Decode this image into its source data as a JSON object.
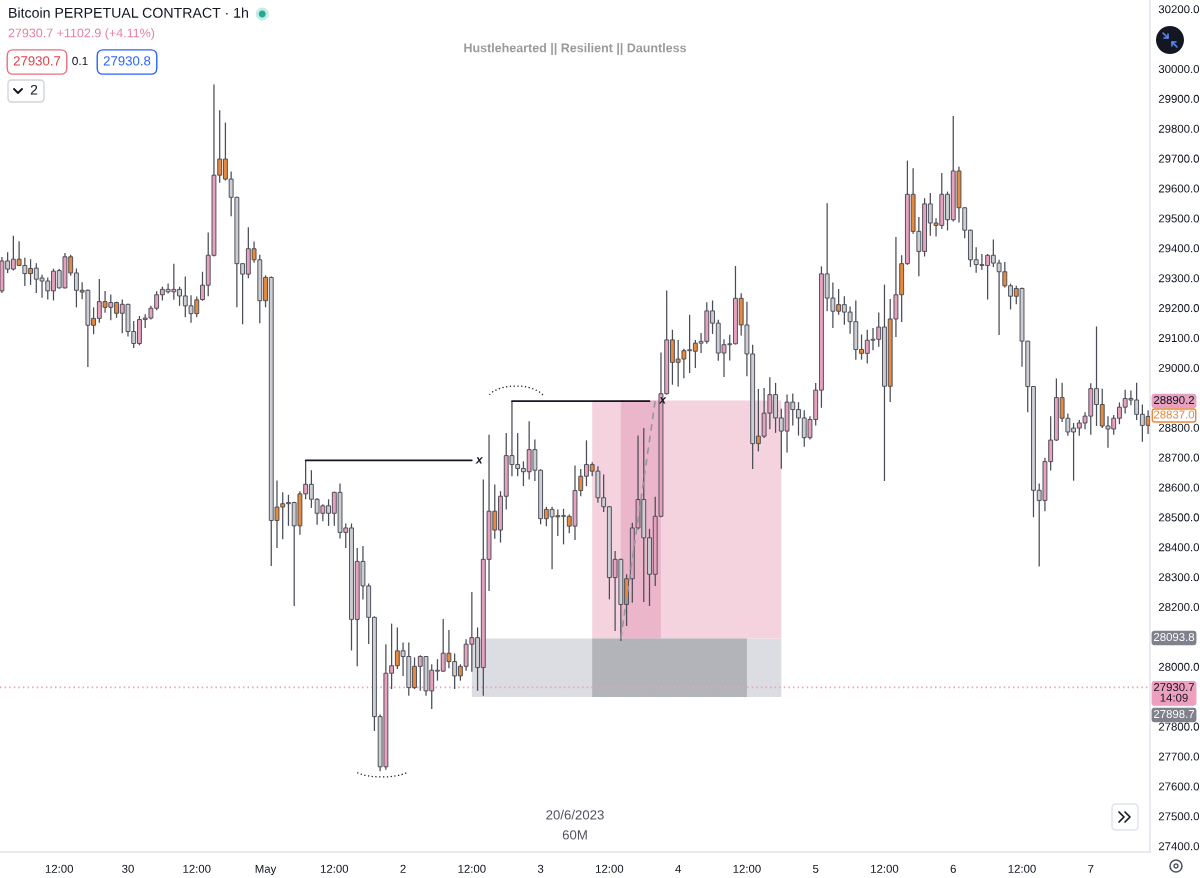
{
  "chart_data": {
    "type": "candlestick",
    "title": "Bitcoin PERPETUAL CONTRACT · 1h",
    "subtitle": "27930.7 +1102.9 (+4.11%)",
    "x": [
      "2023-04-29T02:00",
      "2023-04-29T03:00",
      "2023-04-29T04:00",
      "2023-04-29T05:00",
      "2023-04-29T06:00",
      "2023-04-29T07:00",
      "2023-04-29T08:00",
      "2023-04-29T09:00",
      "2023-04-29T10:00",
      "2023-04-29T11:00",
      "2023-04-29T12:00",
      "2023-04-29T13:00",
      "2023-04-29T14:00",
      "2023-04-29T15:00",
      "2023-04-29T16:00",
      "2023-04-29T17:00",
      "2023-04-29T18:00",
      "2023-04-29T19:00",
      "2023-04-29T20:00",
      "2023-04-29T21:00",
      "2023-04-29T22:00",
      "2023-04-29T23:00",
      "2023-04-30T00:00",
      "2023-04-30T01:00",
      "2023-04-30T02:00",
      "2023-04-30T03:00",
      "2023-04-30T04:00",
      "2023-04-30T05:00",
      "2023-04-30T06:00",
      "2023-04-30T07:00",
      "2023-04-30T08:00",
      "2023-04-30T09:00",
      "2023-04-30T10:00",
      "2023-04-30T11:00",
      "2023-04-30T12:00",
      "2023-04-30T13:00",
      "2023-04-30T14:00",
      "2023-04-30T15:00",
      "2023-04-30T16:00",
      "2023-04-30T17:00",
      "2023-04-30T18:00",
      "2023-04-30T19:00",
      "2023-04-30T20:00",
      "2023-04-30T21:00",
      "2023-04-30T22:00",
      "2023-04-30T23:00",
      "2023-05-01T00:00",
      "2023-05-01T01:00",
      "2023-05-01T02:00",
      "2023-05-01T03:00",
      "2023-05-01T04:00",
      "2023-05-01T05:00",
      "2023-05-01T06:00",
      "2023-05-01T07:00",
      "2023-05-01T08:00",
      "2023-05-01T09:00",
      "2023-05-01T10:00",
      "2023-05-01T11:00",
      "2023-05-01T12:00",
      "2023-05-01T13:00",
      "2023-05-01T14:00",
      "2023-05-01T15:00",
      "2023-05-01T16:00",
      "2023-05-01T17:00",
      "2023-05-01T18:00",
      "2023-05-01T19:00",
      "2023-05-01T20:00",
      "2023-05-01T21:00",
      "2023-05-01T22:00",
      "2023-05-01T23:00",
      "2023-05-02T00:00",
      "2023-05-02T01:00",
      "2023-05-02T02:00",
      "2023-05-02T03:00",
      "2023-05-02T04:00",
      "2023-05-02T05:00",
      "2023-05-02T06:00",
      "2023-05-02T07:00",
      "2023-05-02T08:00",
      "2023-05-02T09:00",
      "2023-05-02T10:00",
      "2023-05-02T11:00",
      "2023-05-02T12:00",
      "2023-05-02T13:00",
      "2023-05-02T14:00",
      "2023-05-02T15:00",
      "2023-05-02T16:00",
      "2023-05-02T17:00",
      "2023-05-02T18:00",
      "2023-05-02T19:00",
      "2023-05-02T20:00",
      "2023-05-02T21:00",
      "2023-05-02T22:00",
      "2023-05-02T23:00",
      "2023-05-03T00:00",
      "2023-05-03T01:00",
      "2023-05-03T02:00",
      "2023-05-03T03:00",
      "2023-05-03T04:00",
      "2023-05-03T05:00",
      "2023-05-03T06:00",
      "2023-05-03T07:00",
      "2023-05-03T08:00",
      "2023-05-03T09:00",
      "2023-05-03T10:00",
      "2023-05-03T11:00",
      "2023-05-03T12:00",
      "2023-05-03T13:00",
      "2023-05-03T14:00",
      "2023-05-03T15:00",
      "2023-05-03T16:00",
      "2023-05-03T17:00",
      "2023-05-03T18:00",
      "2023-05-03T19:00",
      "2023-05-03T20:00",
      "2023-05-03T21:00",
      "2023-05-03T22:00",
      "2023-05-03T23:00",
      "2023-05-04T00:00",
      "2023-05-04T01:00",
      "2023-05-04T02:00",
      "2023-05-04T03:00",
      "2023-05-04T04:00",
      "2023-05-04T05:00",
      "2023-05-04T06:00",
      "2023-05-04T07:00",
      "2023-05-04T08:00",
      "2023-05-04T09:00",
      "2023-05-04T10:00",
      "2023-05-04T11:00",
      "2023-05-04T12:00",
      "2023-05-04T13:00",
      "2023-05-04T14:00",
      "2023-05-04T15:00",
      "2023-05-04T16:00",
      "2023-05-04T17:00",
      "2023-05-04T18:00",
      "2023-05-04T19:00",
      "2023-05-04T20:00",
      "2023-05-04T21:00",
      "2023-05-04T22:00",
      "2023-05-04T23:00",
      "2023-05-05T00:00",
      "2023-05-05T01:00",
      "2023-05-05T02:00",
      "2023-05-05T03:00",
      "2023-05-05T04:00",
      "2023-05-05T05:00",
      "2023-05-05T06:00",
      "2023-05-05T07:00",
      "2023-05-05T08:00",
      "2023-05-05T09:00",
      "2023-05-05T10:00",
      "2023-05-05T11:00",
      "2023-05-05T12:00",
      "2023-05-05T13:00",
      "2023-05-05T14:00",
      "2023-05-05T15:00",
      "2023-05-05T16:00",
      "2023-05-05T17:00",
      "2023-05-05T18:00",
      "2023-05-05T19:00",
      "2023-05-05T20:00",
      "2023-05-05T21:00",
      "2023-05-05T22:00",
      "2023-05-05T23:00",
      "2023-05-06T00:00",
      "2023-05-06T01:00",
      "2023-05-06T02:00",
      "2023-05-06T03:00",
      "2023-05-06T04:00",
      "2023-05-06T05:00",
      "2023-05-06T06:00",
      "2023-05-06T07:00",
      "2023-05-06T08:00",
      "2023-05-06T09:00",
      "2023-05-06T10:00",
      "2023-05-06T11:00",
      "2023-05-06T12:00",
      "2023-05-06T13:00",
      "2023-05-06T14:00",
      "2023-05-06T15:00",
      "2023-05-06T16:00",
      "2023-05-06T17:00",
      "2023-05-06T18:00",
      "2023-05-06T19:00",
      "2023-05-06T20:00",
      "2023-05-06T21:00",
      "2023-05-06T22:00",
      "2023-05-06T23:00",
      "2023-05-07T00:00",
      "2023-05-07T01:00",
      "2023-05-07T02:00",
      "2023-05-07T03:00",
      "2023-05-07T04:00",
      "2023-05-07T05:00",
      "2023-05-07T06:00",
      "2023-05-07T07:00",
      "2023-05-07T08:00",
      "2023-05-07T09:00",
      "2023-05-07T10:00"
    ],
    "ohlc": [
      [
        29257,
        29370,
        29250,
        29357
      ],
      [
        29357,
        29386,
        29317,
        29330
      ],
      [
        29330,
        29441,
        29325,
        29363
      ],
      [
        29363,
        29423,
        29340,
        29342
      ],
      [
        29342,
        29368,
        29273,
        29315
      ],
      [
        29315,
        29363,
        29277,
        29332
      ],
      [
        29333,
        29349,
        29250,
        29296
      ],
      [
        29300,
        29311,
        29234,
        29290
      ],
      [
        29290,
        29302,
        29228,
        29257
      ],
      [
        29257,
        29331,
        29225,
        29323
      ],
      [
        29325,
        29331,
        29265,
        29267
      ],
      [
        29267,
        29384,
        29265,
        29371
      ],
      [
        29371,
        29378,
        29308,
        29317
      ],
      [
        29317,
        29332,
        29202,
        29259
      ],
      [
        29259,
        29286,
        29229,
        29253
      ],
      [
        29259,
        29262,
        29002,
        29142
      ],
      [
        29142,
        29202,
        29112,
        29165
      ],
      [
        29165,
        29297,
        29150,
        29221
      ],
      [
        29221,
        29257,
        29184,
        29202
      ],
      [
        29202,
        29245,
        29159,
        29218
      ],
      [
        29218,
        29221,
        29167,
        29182
      ],
      [
        29182,
        29228,
        29115,
        29212
      ],
      [
        29212,
        29214,
        29104,
        29121
      ],
      [
        29121,
        29156,
        29066,
        29081
      ],
      [
        29081,
        29173,
        29075,
        29161
      ],
      [
        29161,
        29179,
        29133,
        29166
      ],
      [
        29166,
        29207,
        29161,
        29199
      ],
      [
        29199,
        29256,
        29192,
        29244
      ],
      [
        29244,
        29271,
        29225,
        29262
      ],
      [
        29262,
        29282,
        29248,
        29254
      ],
      [
        29254,
        29348,
        29227,
        29262
      ],
      [
        29262,
        29271,
        29207,
        29240
      ],
      [
        29240,
        29305,
        29169,
        29207
      ],
      [
        29207,
        29242,
        29150,
        29181
      ],
      [
        29181,
        29238,
        29169,
        29227
      ],
      [
        29228,
        29321,
        29224,
        29276
      ],
      [
        29276,
        29452,
        29239,
        29376
      ],
      [
        29376,
        29947,
        29372,
        29644
      ],
      [
        29644,
        29861,
        29619,
        29698
      ],
      [
        29698,
        29820,
        29626,
        29631
      ],
      [
        29631,
        29656,
        29507,
        29570
      ],
      [
        29570,
        29572,
        29202,
        29348
      ],
      [
        29348,
        29348,
        29145,
        29313
      ],
      [
        29313,
        29470,
        29299,
        29398
      ],
      [
        29398,
        29422,
        29351,
        29361
      ],
      [
        29361,
        29378,
        29149,
        29224
      ],
      [
        29224,
        29309,
        29202,
        29302
      ],
      [
        29302,
        29305,
        28337,
        28489
      ],
      [
        28489,
        28623,
        28397,
        28534
      ],
      [
        28534,
        28583,
        28426,
        28545
      ],
      [
        28545,
        28575,
        28471,
        28549
      ],
      [
        28549,
        28552,
        28203,
        28471
      ],
      [
        28471,
        28587,
        28441,
        28578
      ],
      [
        28578,
        28690,
        28560,
        28610
      ],
      [
        28610,
        28657,
        28531,
        28560
      ],
      [
        28560,
        28563,
        28475,
        28513
      ],
      [
        28513,
        28543,
        28486,
        28538
      ],
      [
        28538,
        28560,
        28471,
        28513
      ],
      [
        28513,
        28585,
        28471,
        28583
      ],
      [
        28583,
        28613,
        28429,
        28449
      ],
      [
        28449,
        28479,
        28397,
        28464
      ],
      [
        28464,
        28479,
        28054,
        28158
      ],
      [
        28158,
        28397,
        28001,
        28352
      ],
      [
        28352,
        28404,
        28225,
        28270
      ],
      [
        28270,
        28278,
        28076,
        28165
      ],
      [
        28165,
        28168,
        27785,
        27833
      ],
      [
        27833,
        27840,
        27650,
        27665
      ],
      [
        27665,
        28075,
        27655,
        27978
      ],
      [
        27978,
        28144,
        27925,
        28003
      ],
      [
        28003,
        28131,
        27992,
        28053
      ],
      [
        28053,
        28081,
        27969,
        28034
      ],
      [
        28034,
        28081,
        27903,
        27930
      ],
      [
        27930,
        28031,
        27925,
        28001
      ],
      [
        28001,
        28038,
        27919,
        28034
      ],
      [
        28034,
        28036,
        27903,
        27919
      ],
      [
        27919,
        28008,
        27858,
        27988
      ],
      [
        27988,
        28025,
        27953,
        27985
      ],
      [
        27985,
        28159,
        27983,
        28045
      ],
      [
        28045,
        28123,
        27995,
        28017
      ],
      [
        28017,
        28044,
        27925,
        27969
      ],
      [
        27969,
        28008,
        27953,
        28001
      ],
      [
        28001,
        28092,
        27986,
        28075
      ],
      [
        28075,
        28250,
        27983,
        28097
      ],
      [
        28097,
        28131,
        27919,
        27997
      ],
      [
        27997,
        28626,
        27903,
        28359
      ],
      [
        28359,
        28776,
        28253,
        28520
      ],
      [
        28520,
        28609,
        28428,
        28457
      ],
      [
        28457,
        28587,
        28415,
        28570
      ],
      [
        28570,
        28782,
        28526,
        28706
      ],
      [
        28706,
        28888,
        28637,
        28676
      ],
      [
        28676,
        28782,
        28637,
        28663
      ],
      [
        28663,
        28687,
        28604,
        28652
      ],
      [
        28652,
        28821,
        28626,
        28726
      ],
      [
        28726,
        28760,
        28621,
        28657
      ],
      [
        28657,
        28660,
        28476,
        28495
      ],
      [
        28495,
        28535,
        28470,
        28526
      ],
      [
        28526,
        28535,
        28326,
        28501
      ],
      [
        28501,
        28526,
        28437,
        28505
      ],
      [
        28505,
        28528,
        28409,
        28503
      ],
      [
        28503,
        28509,
        28446,
        28470
      ],
      [
        28470,
        28673,
        28424,
        28589
      ],
      [
        28589,
        28661,
        28570,
        28637
      ],
      [
        28637,
        28757,
        28604,
        28676
      ],
      [
        28676,
        28684,
        28637,
        28654
      ],
      [
        28654,
        28670,
        28548,
        28565
      ],
      [
        28565,
        28643,
        28517,
        28535
      ],
      [
        28535,
        28537,
        28225,
        28298
      ],
      [
        28298,
        28387,
        28119,
        28359
      ],
      [
        28359,
        28361,
        28086,
        28208
      ],
      [
        28208,
        28309,
        28136,
        28294
      ],
      [
        28294,
        28481,
        28214,
        28464
      ],
      [
        28464,
        28773,
        28459,
        28559
      ],
      [
        28559,
        28798,
        28216,
        28431
      ],
      [
        28431,
        28461,
        28203,
        28309
      ],
      [
        28309,
        28568,
        28270,
        28503
      ],
      [
        28503,
        29051,
        28500,
        28913
      ],
      [
        28913,
        29258,
        28910,
        29093
      ],
      [
        29093,
        29127,
        28943,
        29018
      ],
      [
        29018,
        29093,
        28937,
        29029
      ],
      [
        29029,
        29063,
        28965,
        29057
      ],
      [
        29057,
        29177,
        28982,
        29060
      ],
      [
        29055,
        29093,
        28999,
        29082
      ],
      [
        29082,
        29116,
        29049,
        29088
      ],
      [
        29088,
        29219,
        29080,
        29190
      ],
      [
        29190,
        29225,
        29113,
        29149
      ],
      [
        29149,
        29160,
        29023,
        29049
      ],
      [
        29049,
        29095,
        28969,
        29077
      ],
      [
        29077,
        29110,
        29024,
        29080
      ],
      [
        29080,
        29340,
        29078,
        29232
      ],
      [
        29232,
        29249,
        29108,
        29143
      ],
      [
        29143,
        29221,
        28971,
        29046
      ],
      [
        29046,
        29077,
        28661,
        28746
      ],
      [
        28746,
        28929,
        28720,
        28771
      ],
      [
        28771,
        28932,
        28765,
        28848
      ],
      [
        28848,
        28968,
        28794,
        28910
      ],
      [
        28910,
        28949,
        28782,
        28832
      ],
      [
        28832,
        28863,
        28662,
        28788
      ],
      [
        28788,
        28910,
        28716,
        28885
      ],
      [
        28885,
        28914,
        28807,
        28860
      ],
      [
        28860,
        28885,
        28773,
        28832
      ],
      [
        28832,
        28858,
        28736,
        28766
      ],
      [
        28766,
        28838,
        28760,
        28827
      ],
      [
        28827,
        28949,
        28807,
        28925
      ],
      [
        28925,
        29339,
        28866,
        29314
      ],
      [
        29314,
        29550,
        29189,
        29233
      ],
      [
        29233,
        29285,
        29133,
        29189
      ],
      [
        29189,
        29263,
        29177,
        29211
      ],
      [
        29211,
        29239,
        29144,
        29186
      ],
      [
        29186,
        29205,
        29114,
        29154
      ],
      [
        29154,
        29225,
        29027,
        29061
      ],
      [
        29061,
        29111,
        29027,
        29048
      ],
      [
        29048,
        29127,
        29014,
        29092
      ],
      [
        29092,
        29133,
        29058,
        29095
      ],
      [
        29095,
        29185,
        29070,
        29136
      ],
      [
        29136,
        29278,
        28621,
        28938
      ],
      [
        28938,
        29230,
        28885,
        29163
      ],
      [
        29163,
        29437,
        29103,
        29244
      ],
      [
        29244,
        29376,
        29153,
        29348
      ],
      [
        29348,
        29693,
        29344,
        29580
      ],
      [
        29580,
        29667,
        29448,
        29456
      ],
      [
        29456,
        29504,
        29306,
        29389
      ],
      [
        29389,
        29567,
        29372,
        29548
      ],
      [
        29548,
        29584,
        29441,
        29484
      ],
      [
        29484,
        29500,
        29439,
        29476
      ],
      [
        29476,
        29651,
        29464,
        29580
      ],
      [
        29580,
        29589,
        29459,
        29495
      ],
      [
        29495,
        29842,
        29489,
        29658
      ],
      [
        29658,
        29672,
        29486,
        29535
      ],
      [
        29535,
        29537,
        29433,
        29460
      ],
      [
        29460,
        29462,
        29337,
        29361
      ],
      [
        29361,
        29403,
        29318,
        29345
      ],
      [
        29345,
        29380,
        29327,
        29342
      ],
      [
        29342,
        29380,
        29228,
        29376
      ],
      [
        29376,
        29429,
        29337,
        29350
      ],
      [
        29350,
        29361,
        29109,
        29321
      ],
      [
        29321,
        29354,
        29268,
        29274
      ],
      [
        29274,
        29281,
        29195,
        29239
      ],
      [
        29239,
        29274,
        29212,
        29265
      ],
      [
        29265,
        29268,
        29003,
        29089
      ],
      [
        29089,
        29089,
        28851,
        28937
      ],
      [
        28937,
        28937,
        28500,
        28590
      ],
      [
        28590,
        28613,
        28335,
        28556
      ],
      [
        28556,
        28699,
        28520,
        28686
      ],
      [
        28686,
        28838,
        28656,
        28758
      ],
      [
        28758,
        28964,
        28755,
        28900
      ],
      [
        28900,
        28950,
        28818,
        28831
      ],
      [
        28831,
        28847,
        28772,
        28785
      ],
      [
        28798,
        28815,
        28622,
        28785
      ],
      [
        28798,
        28825,
        28772,
        28815
      ],
      [
        28815,
        28851,
        28794,
        28838
      ],
      [
        28838,
        28948,
        28776,
        28930
      ],
      [
        28930,
        29138,
        28805,
        28877
      ],
      [
        28877,
        28930,
        28798,
        28805
      ],
      [
        28805,
        28838,
        28732,
        28795
      ],
      [
        28795,
        28842,
        28776,
        28831
      ],
      [
        28831,
        28884,
        28811,
        28868
      ],
      [
        28868,
        28926,
        28847,
        28897
      ],
      [
        28897,
        28924,
        28874,
        28892
      ],
      [
        28892,
        28950,
        28825,
        28844
      ],
      [
        28844,
        28877,
        28752,
        28807
      ],
      [
        28807,
        28858,
        28778,
        28837.0
      ]
    ],
    "colors": [
      "#e8a1bf",
      "#cdced3",
      "#e8a1bf",
      "#e8893c",
      "#cdced3",
      "#e8893c",
      "#cdced3",
      "#cdced3",
      "#cdced3",
      "#e8a1bf",
      "#cdced3",
      "#e8a1bf",
      "#e8893c",
      "#cdced3",
      "#e8893c",
      "#cdced3",
      "#e8893c",
      "#e8a1bf",
      "#e8893c",
      "#e8a1bf",
      "#e8893c",
      "#e8a1bf",
      "#cdced3",
      "#cdced3",
      "#e8a1bf",
      "#e8a1bf",
      "#e8a1bf",
      "#e8a1bf",
      "#e8a1bf",
      "#cdced3",
      "#e8a1bf",
      "#cdced3",
      "#cdced3",
      "#cdced3",
      "#e8893c",
      "#e8a1bf",
      "#e8a1bf",
      "#e8a1bf",
      "#e8893c",
      "#e8893c",
      "#cdced3",
      "#cdced3",
      "#cdced3",
      "#e8a1bf",
      "#e8893c",
      "#cdced3",
      "#e8893c",
      "#cdced3",
      "#e8893c",
      "#e8893c",
      "#e8a1bf",
      "#cdced3",
      "#e8893c",
      "#e8a1bf",
      "#cdced3",
      "#cdced3",
      "#e8a1bf",
      "#cdced3",
      "#e8a1bf",
      "#cdced3",
      "#e8a1bf",
      "#cdced3",
      "#e8a1bf",
      "#cdced3",
      "#cdced3",
      "#cdced3",
      "#cdced3",
      "#e8a1bf",
      "#e8a1bf",
      "#e8893c",
      "#cdced3",
      "#cdced3",
      "#e8893c",
      "#e8a1bf",
      "#cdced3",
      "#e8a1bf",
      "#cdced3",
      "#e8a1bf",
      "#e8893c",
      "#cdced3",
      "#e8893c",
      "#e8a1bf",
      "#e8a1bf",
      "#cdced3",
      "#e8a1bf",
      "#e8a1bf",
      "#e8893c",
      "#e8a1bf",
      "#e8a1bf",
      "#cdced3",
      "#cdced3",
      "#cdced3",
      "#e8a1bf",
      "#cdced3",
      "#cdced3",
      "#e8893c",
      "#cdced3",
      "#e8893c",
      "#cdced3",
      "#e8893c",
      "#e8a1bf",
      "#e8893c",
      "#e8a1bf",
      "#e8893c",
      "#cdced3",
      "#cdced3",
      "#cdced3",
      "#e8a1bf",
      "#cdced3",
      "#e8893c",
      "#e8a1bf",
      "#e8a1bf",
      "#cdced3",
      "#cdced3",
      "#e8a1bf",
      "#e8a1bf",
      "#e8a1bf",
      "#e8893c",
      "#e8893c",
      "#e8893c",
      "#cdced3",
      "#e8893c",
      "#cdced3",
      "#e8a1bf",
      "#cdced3",
      "#cdced3",
      "#e8a1bf",
      "#cdced3",
      "#e8a1bf",
      "#e8893c",
      "#cdced3",
      "#cdced3",
      "#e8893c",
      "#e8a1bf",
      "#e8a1bf",
      "#cdced3",
      "#cdced3",
      "#e8a1bf",
      "#cdced3",
      "#cdced3",
      "#cdced3",
      "#e8a1bf",
      "#e8a1bf",
      "#e8a1bf",
      "#cdced3",
      "#cdced3",
      "#e8893c",
      "#cdced3",
      "#cdced3",
      "#cdced3",
      "#e8893c",
      "#e8a1bf",
      "#cdced3",
      "#e8a1bf",
      "#cdced3",
      "#e8893c",
      "#e8a1bf",
      "#e8893c",
      "#e8a1bf",
      "#e8893c",
      "#cdced3",
      "#e8a1bf",
      "#cdced3",
      "#e8893c",
      "#e8a1bf",
      "#cdced3",
      "#e8a1bf",
      "#e8893c",
      "#cdced3",
      "#cdced3",
      "#cdced3",
      "#cdced3",
      "#e8a1bf",
      "#cdced3",
      "#cdced3",
      "#e8893c",
      "#cdced3",
      "#e8893c",
      "#cdced3",
      "#cdced3",
      "#cdced3",
      "#cdced3",
      "#e8a1bf",
      "#e8a1bf",
      "#e8a1bf",
      "#e8893c",
      "#cdced3",
      "#cdced3",
      "#e8a1bf",
      "#e8a1bf",
      "#e8a1bf",
      "#cdced3",
      "#e8893c",
      "#cdced3",
      "#e8a1bf",
      "#e8a1bf",
      "#e8a1bf",
      "#cdced3",
      "#cdced3",
      "#cdced3",
      "#e8893c"
    ],
    "series": [
      {
        "type": "line",
        "x": [
          "2023-05-02T12:00",
          "2023-05-04T18:00"
        ],
        "values": [
          null,
          null
        ],
        "lower": [
          27898.7,
          27898.7
        ],
        "upper": [
          28093.8,
          28093.8
        ],
        "color": "#dcdde2"
      },
      {
        "type": "line",
        "x": [
          "2023-05-03T09:00",
          "2023-05-04T18:00"
        ],
        "values": [
          null,
          null
        ],
        "lower": [
          28093.8,
          28093.8
        ],
        "upper": [
          28890.2,
          28890.2
        ],
        "color": "#f4d3df"
      },
      {
        "type": "line",
        "x": [
          "2023-05-03T14:00",
          "2023-05-03T21:00"
        ],
        "values": [
          null,
          null
        ],
        "lower": [
          28093.8,
          28093.8
        ],
        "upper": [
          28890.2,
          28890.2
        ],
        "color": "#ebb6ca"
      },
      {
        "type": "line",
        "x": [
          "2023-05-03T09:00",
          "2023-05-04T12:00"
        ],
        "values": [
          null,
          null
        ],
        "lower": [
          27898.7,
          27898.7
        ],
        "upper": [
          28093.8,
          28093.8
        ],
        "color": "#b3b4b9"
      },
      {
        "type": "line",
        "x": [
          "2023-05-01T07:00",
          "2023-05-02T12:00"
        ],
        "values": [
          28690,
          28690
        ],
        "color": "#131722",
        "line_style": "solid"
      },
      {
        "type": "line",
        "x": [
          "2023-05-02T19:00",
          "2023-05-03T19:00"
        ],
        "values": [
          28888,
          28888
        ],
        "color": "#131722",
        "line_style": "solid"
      },
      {
        "type": "line",
        "x": [
          "2023-05-03T14:00",
          "2023-05-03T20:00"
        ],
        "values": [
          28093.8,
          28890.2
        ],
        "color": "#9598a1",
        "line_style": "dashed"
      }
    ],
    "ref_lines": [
      {
        "axis": "y",
        "value": 27930.7,
        "label": "27930.7\n14:09",
        "color": "#ef9fbe",
        "line_style": "dotted"
      }
    ],
    "annotations": [
      "Hustlehearted || Resilient || Dauntless",
      "27930.7",
      "0.1",
      "27930.8",
      "2",
      "20/6/2023",
      "60M",
      "28890.2",
      "28837.0",
      "28093.8",
      "27898.7",
      {
        "text": "x",
        "x": "2023-05-02T12:00",
        "y": 28690
      },
      {
        "text": "x",
        "x": "2023-05-03T20:00",
        "y": 28890.2
      }
    ],
    "xlim": [
      "2023-04-29T01:40",
      "2023-05-07T10:20"
    ],
    "ylim": [
      27380,
      30230
    ],
    "xticks": [
      {
        "value": "2023-04-29T12:00",
        "label": "12:00"
      },
      {
        "value": "2023-04-30",
        "label": "30"
      },
      {
        "value": "2023-04-30T12:00",
        "label": "12:00"
      },
      {
        "value": "2023-05-01",
        "label": "May"
      },
      {
        "value": "2023-05-01T12:00",
        "label": "12:00"
      },
      {
        "value": "2023-05-02",
        "label": "2"
      },
      {
        "value": "2023-05-02T12:00",
        "label": "12:00"
      },
      {
        "value": "2023-05-03",
        "label": "3"
      },
      {
        "value": "2023-05-03T12:00",
        "label": "12:00"
      },
      {
        "value": "2023-05-04",
        "label": "4"
      },
      {
        "value": "2023-05-04T12:00",
        "label": "12:00"
      },
      {
        "value": "2023-05-05",
        "label": "5"
      },
      {
        "value": "2023-05-05T12:00",
        "label": "12:00"
      },
      {
        "value": "2023-05-06",
        "label": "6"
      },
      {
        "value": "2023-05-06T12:00",
        "label": "12:00"
      },
      {
        "value": "2023-05-07",
        "label": "7"
      }
    ],
    "yticks": [
      {
        "value": 27400,
        "label": "27400.0"
      },
      {
        "value": 27500,
        "label": "27500.0"
      },
      {
        "value": 27600,
        "label": "27600.0"
      },
      {
        "value": 27700,
        "label": "27700.0"
      },
      {
        "value": 27800,
        "label": "27800.0"
      },
      {
        "value": 28000,
        "label": "28000.0"
      },
      {
        "value": 28200,
        "label": "28200.0"
      },
      {
        "value": 28300,
        "label": "28300.0"
      },
      {
        "value": 28400,
        "label": "28400.0"
      },
      {
        "value": 28500,
        "label": "28500.0"
      },
      {
        "value": 28600,
        "label": "28600.0"
      },
      {
        "value": 28700,
        "label": "28700.0"
      },
      {
        "value": 28800,
        "label": "28800.0"
      },
      {
        "value": 29000,
        "label": "29000.0"
      },
      {
        "value": 29100,
        "label": "29100.0"
      },
      {
        "value": 29200,
        "label": "29200.0"
      },
      {
        "value": 29300,
        "label": "29300.0"
      },
      {
        "value": 29400,
        "label": "29400.0"
      },
      {
        "value": 29500,
        "label": "29500.0"
      },
      {
        "value": 29600,
        "label": "29600.0"
      },
      {
        "value": 29700,
        "label": "29700.0"
      },
      {
        "value": 29800,
        "label": "29800.0"
      },
      {
        "value": 29900,
        "label": "29900.0"
      },
      {
        "value": 30000,
        "label": "30000.0"
      },
      {
        "value": 30200,
        "label": "30200.0"
      }
    ]
  }
}
